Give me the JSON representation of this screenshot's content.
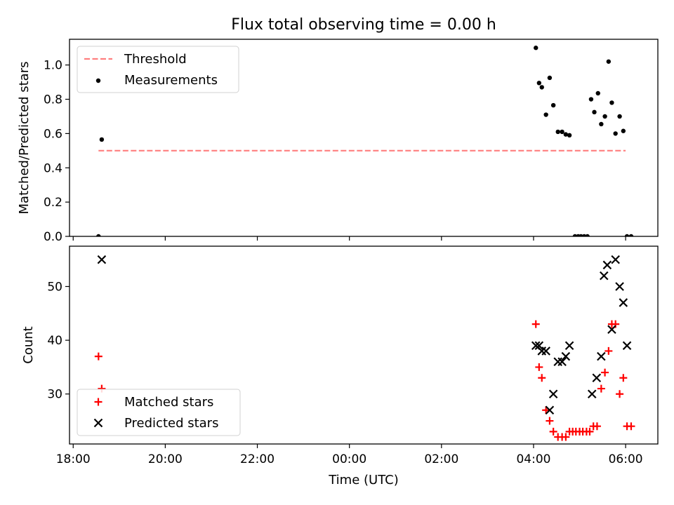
{
  "chart_data": {
    "type": "scatter",
    "title": "Flux total observing time = 0.00 h",
    "xlabel": "Time (UTC)",
    "x_unit": "hours since 18:00 UTC",
    "x_ticks": [
      {
        "value": 0,
        "label": "18:00"
      },
      {
        "value": 2,
        "label": "20:00"
      },
      {
        "value": 4,
        "label": "22:00"
      },
      {
        "value": 6,
        "label": "00:00"
      },
      {
        "value": 8,
        "label": "02:00"
      },
      {
        "value": 10,
        "label": "04:00"
      },
      {
        "value": 12,
        "label": "06:00"
      }
    ],
    "xlim": [
      -0.08,
      12.7
    ],
    "panels": [
      {
        "name": "ratio",
        "ylabel": "Matched/Predicted stars",
        "ylim": [
          0,
          1.15
        ],
        "y_ticks": [
          {
            "value": 0,
            "label": "0.0"
          },
          {
            "value": 0.2,
            "label": "0.2"
          },
          {
            "value": 0.4,
            "label": "0.4"
          },
          {
            "value": 0.6,
            "label": "0.6"
          },
          {
            "value": 0.8,
            "label": "0.8"
          },
          {
            "value": 1.0,
            "label": "1.0"
          }
        ],
        "legend": {
          "position": "upper-left",
          "entries": [
            "Threshold",
            "Measurements"
          ]
        },
        "series": [
          {
            "name": "Threshold",
            "kind": "line",
            "style": "dashed",
            "color": "#ff7f7f",
            "x": [
              0.55,
              12.0
            ],
            "y": [
              0.5,
              0.5
            ]
          },
          {
            "name": "Measurements",
            "kind": "scatter",
            "marker": "dot",
            "color": "#000000",
            "x": [
              0.55,
              0.62,
              10.05,
              10.12,
              10.18,
              10.27,
              10.35,
              10.43,
              10.53,
              10.62,
              10.7,
              10.78,
              10.9,
              10.97,
              11.03,
              11.1,
              11.17,
              11.25,
              11.32,
              11.4,
              11.47,
              11.55,
              11.63,
              11.7,
              11.78,
              11.87,
              11.95,
              12.03,
              12.12
            ],
            "y": [
              0.0,
              0.565,
              1.1,
              0.895,
              0.87,
              0.71,
              0.925,
              0.765,
              0.61,
              0.61,
              0.595,
              0.59,
              0.0,
              0.0,
              0.0,
              0.0,
              0.0,
              0.8,
              0.725,
              0.835,
              0.655,
              0.7,
              1.02,
              0.78,
              0.6,
              0.7,
              0.615,
              0.0,
              0.0
            ]
          }
        ]
      },
      {
        "name": "count",
        "ylabel": "Count",
        "ylim": [
          20.7,
          57.5
        ],
        "y_ticks": [
          {
            "value": 30,
            "label": "30"
          },
          {
            "value": 40,
            "label": "40"
          },
          {
            "value": 50,
            "label": "50"
          }
        ],
        "legend": {
          "position": "lower-left",
          "entries": [
            "Matched stars",
            "Predicted stars"
          ]
        },
        "series": [
          {
            "name": "Matched stars",
            "kind": "scatter",
            "marker": "plus",
            "color": "#ff0000",
            "x": [
              0.55,
              0.62,
              10.05,
              10.12,
              10.18,
              10.27,
              10.35,
              10.43,
              10.53,
              10.62,
              10.7,
              10.78,
              10.85,
              10.92,
              11.0,
              11.07,
              11.15,
              11.22,
              11.3,
              11.38,
              11.47,
              11.55,
              11.63,
              11.7,
              11.78,
              11.87,
              11.95,
              12.03,
              12.12
            ],
            "y": [
              37,
              31,
              43,
              35,
              33,
              27,
              25,
              23,
              22,
              22,
              22,
              23,
              23,
              23,
              23,
              23,
              23,
              23,
              24,
              24,
              31,
              34,
              38,
              43,
              43,
              30,
              33,
              24,
              24
            ]
          },
          {
            "name": "Predicted stars",
            "kind": "scatter",
            "marker": "x",
            "color": "#000000",
            "x": [
              0.62,
              10.05,
              10.12,
              10.18,
              10.27,
              10.35,
              10.43,
              10.53,
              10.62,
              10.7,
              10.78,
              11.27,
              11.37,
              11.47,
              11.53,
              11.6,
              11.7,
              11.78,
              11.87,
              11.95,
              12.03
            ],
            "y": [
              55,
              39,
              39,
              38,
              38,
              27,
              30,
              36,
              36,
              37,
              39,
              30,
              33,
              37,
              52,
              54,
              42,
              55,
              50,
              47,
              39
            ]
          }
        ]
      }
    ]
  }
}
